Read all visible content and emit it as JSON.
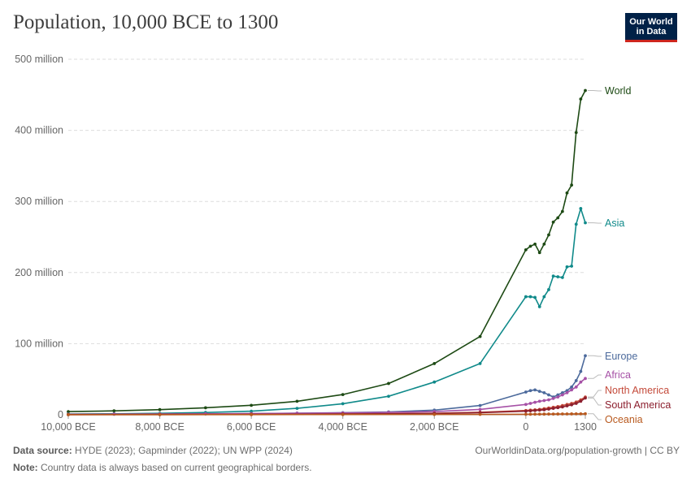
{
  "header": {
    "title": "Population, 10,000 BCE to 1300",
    "logo_line1": "Our World",
    "logo_line2": "in Data"
  },
  "footer": {
    "source_label": "Data source:",
    "source_text": "HYDE (2023); Gapminder (2022); UN WPP (2024)",
    "note_label": "Note:",
    "note_text": "Country data is always based on current geographical borders.",
    "url_text": "OurWorldinData.org/population-growth | CC BY"
  },
  "colors": {
    "World": "#1d4a14",
    "Asia": "#108a8a",
    "Europe": "#4c6a9c",
    "Africa": "#a651a6",
    "North America": "#c44a3a",
    "South America": "#8c1f2e",
    "Oceania": "#b8591e",
    "grid": "#dddddd",
    "axis_text": "#666666"
  },
  "chart_data": {
    "type": "line",
    "title": "Population, 10,000 BCE to 1300",
    "xlabel": "",
    "ylabel": "",
    "xlim": [
      -10000,
      1300
    ],
    "ylim": [
      0,
      500000000
    ],
    "y_ticks": [
      {
        "value": 0,
        "label": "0"
      },
      {
        "value": 100000000,
        "label": "100 million"
      },
      {
        "value": 200000000,
        "label": "200 million"
      },
      {
        "value": 300000000,
        "label": "300 million"
      },
      {
        "value": 400000000,
        "label": "400 million"
      },
      {
        "value": 500000000,
        "label": "500 million"
      }
    ],
    "x_ticks": [
      {
        "value": -10000,
        "label": "10,000 BCE"
      },
      {
        "value": -8000,
        "label": "8,000 BCE"
      },
      {
        "value": -6000,
        "label": "6,000 BCE"
      },
      {
        "value": -4000,
        "label": "4,000 BCE"
      },
      {
        "value": -2000,
        "label": "2,000 BCE"
      },
      {
        "value": 0,
        "label": "0"
      },
      {
        "value": 1300,
        "label": "1300"
      }
    ],
    "series": [
      {
        "name": "World",
        "label": "World",
        "x": [
          -10000,
          -9000,
          -8000,
          -7000,
          -6000,
          -5000,
          -4000,
          -3000,
          -2000,
          -1000,
          0,
          100,
          200,
          300,
          400,
          500,
          600,
          700,
          800,
          900,
          1000,
          1100,
          1200,
          1300
        ],
        "values": [
          4400000,
          5500000,
          7200000,
          9800000,
          13300000,
          19000000,
          28400000,
          44000000,
          72000000,
          110000000,
          232000000,
          237000000,
          240000000,
          228000000,
          240000000,
          253000000,
          271000000,
          277000000,
          286000000,
          312000000,
          323000000,
          397000000,
          444000000,
          456000000
        ]
      },
      {
        "name": "Asia",
        "label": "Asia",
        "x": [
          -10000,
          -9000,
          -8000,
          -7000,
          -6000,
          -5000,
          -4000,
          -3000,
          -2000,
          -1000,
          0,
          100,
          200,
          300,
          400,
          500,
          600,
          700,
          800,
          900,
          1000,
          1100,
          1200,
          1300
        ],
        "values": [
          1100000,
          1400000,
          2000000,
          3200000,
          5000000,
          9000000,
          15500000,
          26000000,
          46000000,
          72000000,
          166000000,
          166000000,
          165000000,
          152000000,
          166000000,
          176000000,
          195000000,
          194000000,
          193000000,
          208000000,
          209000000,
          268000000,
          290000000,
          270000000
        ]
      },
      {
        "name": "Europe",
        "label": "Europe",
        "x": [
          -10000,
          -9000,
          -8000,
          -7000,
          -6000,
          -5000,
          -4000,
          -3000,
          -2000,
          -1000,
          0,
          100,
          200,
          300,
          400,
          500,
          600,
          700,
          800,
          900,
          1000,
          1100,
          1200,
          1300
        ],
        "values": [
          500000,
          700000,
          900000,
          1200000,
          1600000,
          2200000,
          3000000,
          4000000,
          6500000,
          13000000,
          32000000,
          34000000,
          35000000,
          33000000,
          31000000,
          28000000,
          25000000,
          28000000,
          31000000,
          34000000,
          39000000,
          48000000,
          61000000,
          83000000
        ]
      },
      {
        "name": "Africa",
        "label": "Africa",
        "x": [
          -10000,
          -9000,
          -8000,
          -7000,
          -6000,
          -5000,
          -4000,
          -3000,
          -2000,
          -1000,
          0,
          100,
          200,
          300,
          400,
          500,
          600,
          700,
          800,
          900,
          1000,
          1100,
          1200,
          1300
        ],
        "values": [
          700000,
          900000,
          1100000,
          1400000,
          1700000,
          2100000,
          2600000,
          3300000,
          4500000,
          7500000,
          14500000,
          16000000,
          17500000,
          19000000,
          20000000,
          21000000,
          23000000,
          25000000,
          28000000,
          31000000,
          35000000,
          39000000,
          46000000,
          51000000
        ]
      },
      {
        "name": "North America",
        "label": "North America",
        "x": [
          -10000,
          -8000,
          -6000,
          -4000,
          -2000,
          -1000,
          0,
          100,
          200,
          300,
          400,
          500,
          600,
          700,
          800,
          900,
          1000,
          1100,
          1200,
          1300
        ],
        "values": [
          300000,
          400000,
          600000,
          1000000,
          2000000,
          3500000,
          6000000,
          6500000,
          7000000,
          7500000,
          8500000,
          9500000,
          10500000,
          11500000,
          13000000,
          14500000,
          16000000,
          18000000,
          21000000,
          25000000
        ]
      },
      {
        "name": "South America",
        "label": "South America",
        "x": [
          -10000,
          -8000,
          -6000,
          -4000,
          -2000,
          -1000,
          0,
          100,
          200,
          300,
          400,
          500,
          600,
          700,
          800,
          900,
          1000,
          1100,
          1200,
          1300
        ],
        "values": [
          200000,
          300000,
          500000,
          900000,
          1800000,
          3000000,
          5000000,
          5500000,
          6000000,
          6500000,
          7000000,
          8000000,
          9000000,
          10000000,
          11000000,
          12500000,
          14000000,
          16000000,
          19000000,
          23500000
        ]
      },
      {
        "name": "Oceania",
        "label": "Oceania",
        "x": [
          -10000,
          -8000,
          -6000,
          -4000,
          -2000,
          -1000,
          0,
          100,
          200,
          300,
          400,
          500,
          600,
          700,
          800,
          900,
          1000,
          1100,
          1200,
          1300
        ],
        "values": [
          100000,
          150000,
          200000,
          300000,
          400000,
          500000,
          700000,
          750000,
          800000,
          850000,
          900000,
          950000,
          1000000,
          1050000,
          1100000,
          1150000,
          1200000,
          1250000,
          1300000,
          1400000
        ]
      }
    ]
  }
}
